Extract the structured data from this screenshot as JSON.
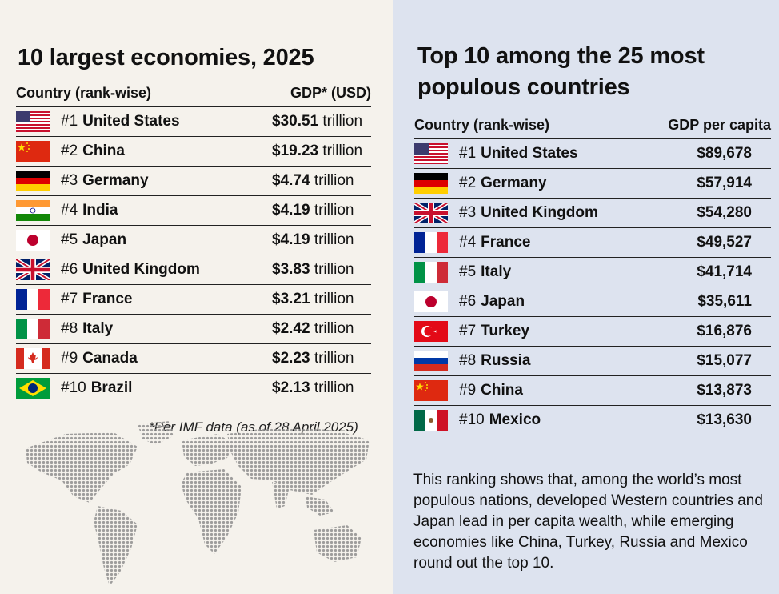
{
  "left": {
    "title": "10 largest economies, 2025",
    "col_country": "Country (rank-wise)",
    "col_value": "GDP* (USD)",
    "rows": [
      {
        "rank": "#1",
        "country": "United States",
        "amount": "$30.51",
        "unit": "trillion",
        "flag": "us-flag"
      },
      {
        "rank": "#2",
        "country": "China",
        "amount": "$19.23",
        "unit": "trillion",
        "flag": "cn-flag"
      },
      {
        "rank": "#3",
        "country": "Germany",
        "amount": "$4.74",
        "unit": "trillion",
        "flag": "de-flag"
      },
      {
        "rank": "#4",
        "country": "India",
        "amount": "$4.19",
        "unit": "trillion",
        "flag": "in-flag"
      },
      {
        "rank": "#5",
        "country": "Japan",
        "amount": "$4.19",
        "unit": "trillion",
        "flag": "jp-flag"
      },
      {
        "rank": "#6",
        "country": "United Kingdom",
        "amount": "$3.83",
        "unit": "trillion",
        "flag": "gb-flag"
      },
      {
        "rank": "#7",
        "country": "France",
        "amount": "$3.21",
        "unit": "trillion",
        "flag": "fr-flag"
      },
      {
        "rank": "#8",
        "country": "Italy",
        "amount": "$2.42",
        "unit": "trillion",
        "flag": "it-flag"
      },
      {
        "rank": "#9",
        "country": "Canada",
        "amount": "$2.23",
        "unit": "trillion",
        "flag": "ca-flag"
      },
      {
        "rank": "#10",
        "country": "Brazil",
        "amount": "$2.13",
        "unit": "trillion",
        "flag": "br-flag"
      }
    ],
    "footnote": "*Per IMF data (as of 28 April 2025)"
  },
  "right": {
    "title_line1": "Top 10 among the 25 most",
    "title_line2": "populous countries",
    "col_country": "Country (rank-wise)",
    "col_value": "GDP per capita",
    "rows": [
      {
        "rank": "#1",
        "country": "United States",
        "value": "$89,678",
        "flag": "us-flag"
      },
      {
        "rank": "#2",
        "country": "Germany",
        "value": "$57,914",
        "flag": "de-flag"
      },
      {
        "rank": "#3",
        "country": "United Kingdom",
        "value": "$54,280",
        "flag": "gb-flag"
      },
      {
        "rank": "#4",
        "country": "France",
        "value": "$49,527",
        "flag": "fr-flag"
      },
      {
        "rank": "#5",
        "country": "Italy",
        "value": "$41,714",
        "flag": "it-flag"
      },
      {
        "rank": "#6",
        "country": "Japan",
        "value": "$35,611",
        "flag": "jp-flag"
      },
      {
        "rank": "#7",
        "country": "Turkey",
        "value": "$16,876",
        "flag": "tr-flag"
      },
      {
        "rank": "#8",
        "country": "Russia",
        "value": "$15,077",
        "flag": "ru-flag"
      },
      {
        "rank": "#9",
        "country": "China",
        "value": "$13,873",
        "flag": "cn-flag"
      },
      {
        "rank": "#10",
        "country": "Mexico",
        "value": "$13,630",
        "flag": "mx-flag"
      }
    ],
    "summary": "This ranking shows that, among the world’s most populous nations, developed Western countries and Japan lead in per capita wealth, while emerging economies like China, Turkey, Russia and Mexico round out the top 10."
  },
  "colors": {
    "left_bg": "#f5f2ec",
    "right_bg": "#dde3ef",
    "rule": "#222222"
  },
  "chart_data": [
    {
      "type": "table",
      "title": "10 largest economies, 2025",
      "columns": [
        "Country (rank-wise)",
        "GDP* (USD)"
      ],
      "categories": [
        "United States",
        "China",
        "Germany",
        "India",
        "Japan",
        "United Kingdom",
        "France",
        "Italy",
        "Canada",
        "Brazil"
      ],
      "values": [
        30.51,
        19.23,
        4.74,
        4.19,
        4.19,
        3.83,
        3.21,
        2.42,
        2.23,
        2.13
      ],
      "unit": "trillion USD"
    },
    {
      "type": "table",
      "title": "Top 10 among the 25 most populous countries",
      "columns": [
        "Country (rank-wise)",
        "GDP per capita"
      ],
      "categories": [
        "United States",
        "Germany",
        "United Kingdom",
        "France",
        "Italy",
        "Japan",
        "Turkey",
        "Russia",
        "China",
        "Mexico"
      ],
      "values": [
        89678,
        57914,
        54280,
        49527,
        41714,
        35611,
        16876,
        15077,
        13873,
        13630
      ],
      "unit": "USD"
    }
  ]
}
